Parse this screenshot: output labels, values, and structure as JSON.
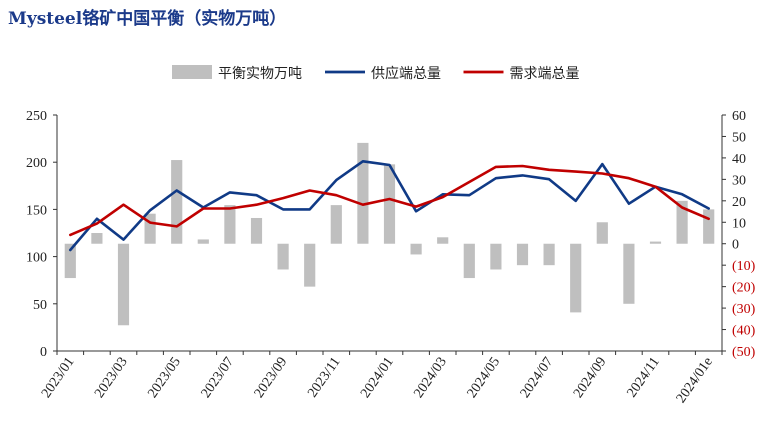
{
  "title": "Mysteel铬矿中国平衡（实物万吨）",
  "chart_data": {
    "type": "bar+line",
    "title": "Mysteel铬矿中国平衡（实物万吨）",
    "categories": [
      "2023/01",
      "2023/02",
      "2023/03",
      "2023/04",
      "2023/05",
      "2023/06",
      "2023/07",
      "2023/08",
      "2023/09",
      "2023/10",
      "2023/11",
      "2023/12",
      "2024/01",
      "2024/02",
      "2024/03",
      "2024/04",
      "2024/05",
      "2024/06",
      "2024/07",
      "2024/08",
      "2024/09",
      "2024/10",
      "2024/11",
      "2024/12",
      "2024/01e"
    ],
    "x_tick_labels": [
      "2023/01",
      "2023/03",
      "2023/05",
      "2023/07",
      "2023/09",
      "2023/11",
      "2024/01",
      "2024/03",
      "2024/05",
      "2024/07",
      "2024/09",
      "2024/11",
      "2024/01e"
    ],
    "series": [
      {
        "name": "平衡实物万吨",
        "type": "bar",
        "axis": "right",
        "color": "#bfbfbf",
        "values": [
          -16,
          5,
          -38,
          14,
          39,
          2,
          18,
          12,
          -12,
          -20,
          18,
          47,
          37,
          -5,
          3,
          -16,
          -12,
          -10,
          -10,
          -32,
          10,
          -28,
          1,
          20,
          16
        ]
      },
      {
        "name": "供应端总量",
        "type": "line",
        "axis": "left",
        "color": "#103a86",
        "values": [
          107,
          140,
          118,
          149,
          170,
          152,
          168,
          165,
          150,
          150,
          181,
          201,
          197,
          148,
          166,
          165,
          183,
          186,
          182,
          159,
          198,
          156,
          174,
          166,
          151
        ]
      },
      {
        "name": "需求端总量",
        "type": "line",
        "axis": "left",
        "color": "#c00000",
        "values": [
          123,
          135,
          155,
          136,
          132,
          151,
          151,
          155,
          162,
          170,
          165,
          155,
          161,
          153,
          163,
          179,
          195,
          196,
          192,
          190,
          188,
          183,
          174,
          152,
          140
        ]
      }
    ],
    "y_left": {
      "lim": [
        0,
        250
      ],
      "ticks": [
        "0",
        "50",
        "100",
        "150",
        "200",
        "250"
      ]
    },
    "y_right": {
      "lim": [
        -50,
        60
      ],
      "ticks": [
        "60",
        "50",
        "40",
        "30",
        "20",
        "10",
        "0",
        "(10)",
        "(20)",
        "(30)",
        "(40)",
        "(50)"
      ]
    },
    "legend": {
      "position": "top-center"
    },
    "grid": false
  }
}
